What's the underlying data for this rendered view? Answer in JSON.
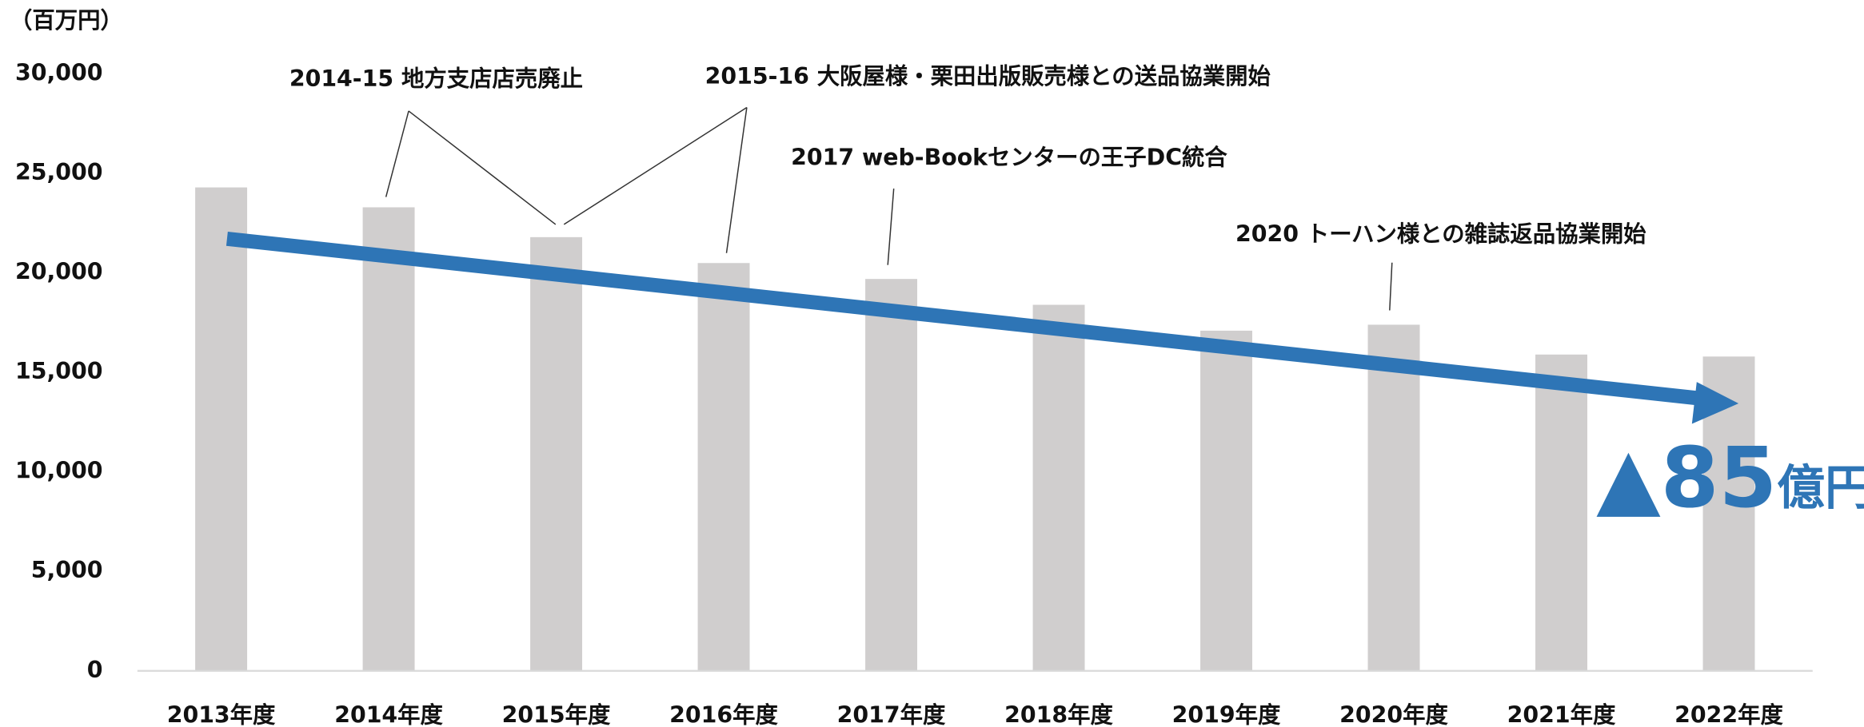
{
  "chart_data": {
    "type": "bar",
    "y_axis_label": "（百万円）",
    "categories": [
      "2013年度",
      "2014年度",
      "2015年度",
      "2016年度",
      "2017年度",
      "2018年度",
      "2019年度",
      "2020年度",
      "2021年度",
      "2022年度"
    ],
    "values": [
      24300,
      23300,
      21800,
      20500,
      19700,
      18400,
      17100,
      17400,
      15900,
      15800
    ],
    "color": "#d0cece",
    "ylim": [
      0,
      30000
    ],
    "yticks": [
      0,
      {
        "value": 5000,
        "label": "5,000"
      },
      {
        "value": 10000,
        "label": "10,000"
      },
      {
        "value": 15000,
        "label": "15,000"
      },
      {
        "value": 20000,
        "label": "20,000"
      },
      {
        "value": 25000,
        "label": "25,000"
      },
      {
        "value": 30000,
        "label": "30,000"
      }
    ],
    "grid": false,
    "trend_color": "#2e75b6",
    "annotations": [
      "2014-15 地方支店店売廃止",
      "2015-16 大阪屋様・栗田出版販売様との送品協業開始",
      "2017 web-Bookセンターの王子DC統合",
      "2020 トーハン様との雑誌返品協業開始"
    ],
    "callout": {
      "text": "▲85",
      "unit": "億円"
    }
  }
}
